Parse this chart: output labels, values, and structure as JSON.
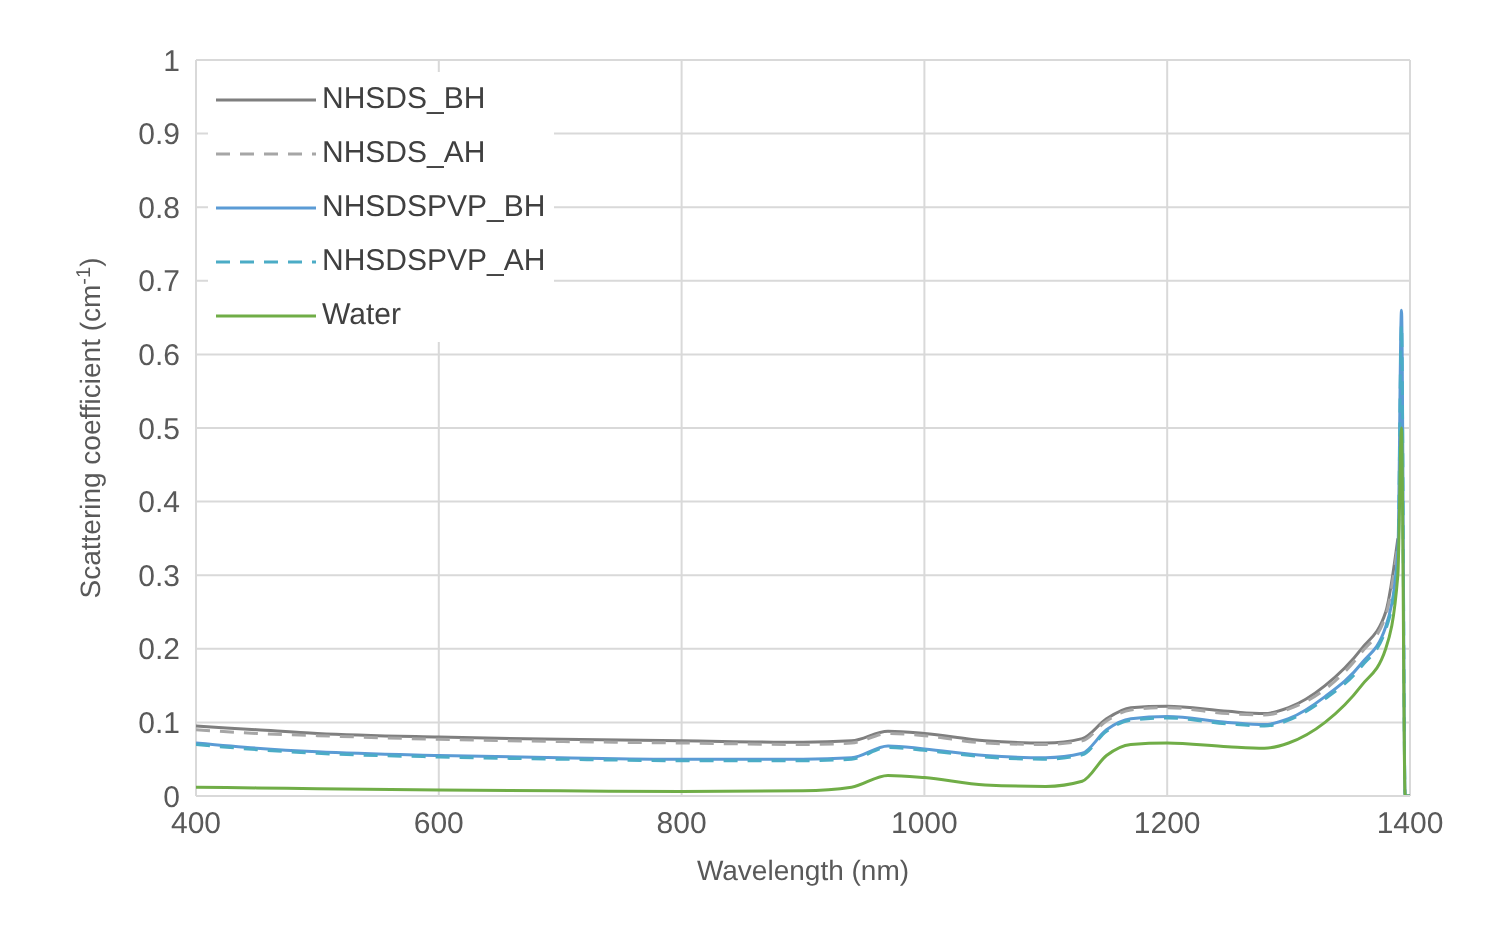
{
  "chart_data": {
    "type": "line",
    "xlabel": "Wavelength (nm)",
    "ylabel": "Scattering coefficient (cm$^{-1}$)",
    "x": [
      400,
      450,
      500,
      600,
      700,
      800,
      900,
      940,
      970,
      1000,
      1050,
      1100,
      1130,
      1150,
      1170,
      1200,
      1250,
      1280,
      1300,
      1330,
      1360,
      1380,
      1390,
      1393,
      1396,
      1400
    ],
    "series": [
      {
        "name": "NHSDS_BH",
        "color": "#7f7f7f",
        "line_style": "solid",
        "values": [
          0.095,
          0.09,
          0.085,
          0.08,
          0.077,
          0.075,
          0.073,
          0.075,
          0.088,
          0.085,
          0.075,
          0.072,
          0.078,
          0.105,
          0.12,
          0.122,
          0.115,
          0.112,
          0.12,
          0.15,
          0.2,
          0.25,
          0.35,
          null,
          null,
          null
        ]
      },
      {
        "name": "NHSDS_AH",
        "color": "#a6a6a6",
        "line_style": "dashed",
        "values": [
          0.09,
          0.085,
          0.082,
          0.077,
          0.074,
          0.072,
          0.07,
          0.072,
          0.085,
          0.082,
          0.072,
          0.07,
          0.075,
          0.102,
          0.117,
          0.12,
          0.112,
          0.11,
          0.118,
          0.145,
          0.195,
          0.245,
          0.34,
          null,
          null,
          null
        ]
      },
      {
        "name": "NHSDSPVP_BH",
        "color": "#5b9bd5",
        "line_style": "solid",
        "values": [
          0.072,
          0.065,
          0.06,
          0.055,
          0.052,
          0.05,
          0.05,
          0.052,
          0.068,
          0.064,
          0.055,
          0.052,
          0.058,
          0.09,
          0.105,
          0.108,
          0.1,
          0.097,
          0.105,
          0.135,
          0.18,
          0.23,
          0.33,
          0.66,
          0,
          0
        ]
      },
      {
        "name": "NHSDSPVP_AH",
        "color": "#4bacc6",
        "line_style": "dashed",
        "values": [
          0.07,
          0.063,
          0.058,
          0.053,
          0.05,
          0.048,
          0.048,
          0.05,
          0.066,
          0.062,
          0.053,
          0.05,
          0.056,
          0.088,
          0.103,
          0.106,
          0.098,
          0.095,
          0.103,
          0.132,
          0.176,
          0.226,
          0.32,
          0.64,
          0,
          0
        ]
      },
      {
        "name": "Water",
        "color": "#70ad47",
        "line_style": "solid",
        "values": [
          0.012,
          0.011,
          0.01,
          0.008,
          0.007,
          0.006,
          0.007,
          0.012,
          0.028,
          0.025,
          0.015,
          0.013,
          0.02,
          0.055,
          0.07,
          0.072,
          0.067,
          0.065,
          0.072,
          0.1,
          0.15,
          0.2,
          0.3,
          0.5,
          0,
          0
        ]
      }
    ],
    "xlim": [
      400,
      1400
    ],
    "xticks": [
      400,
      600,
      800,
      1000,
      1200,
      1400
    ],
    "ylim": [
      0,
      1
    ],
    "yticks": [
      0,
      0.1,
      0.2,
      0.3,
      0.4,
      0.5,
      0.6,
      0.7,
      0.8,
      0.9,
      1
    ],
    "grid": true,
    "legend": "top left",
    "marker": "none"
  }
}
